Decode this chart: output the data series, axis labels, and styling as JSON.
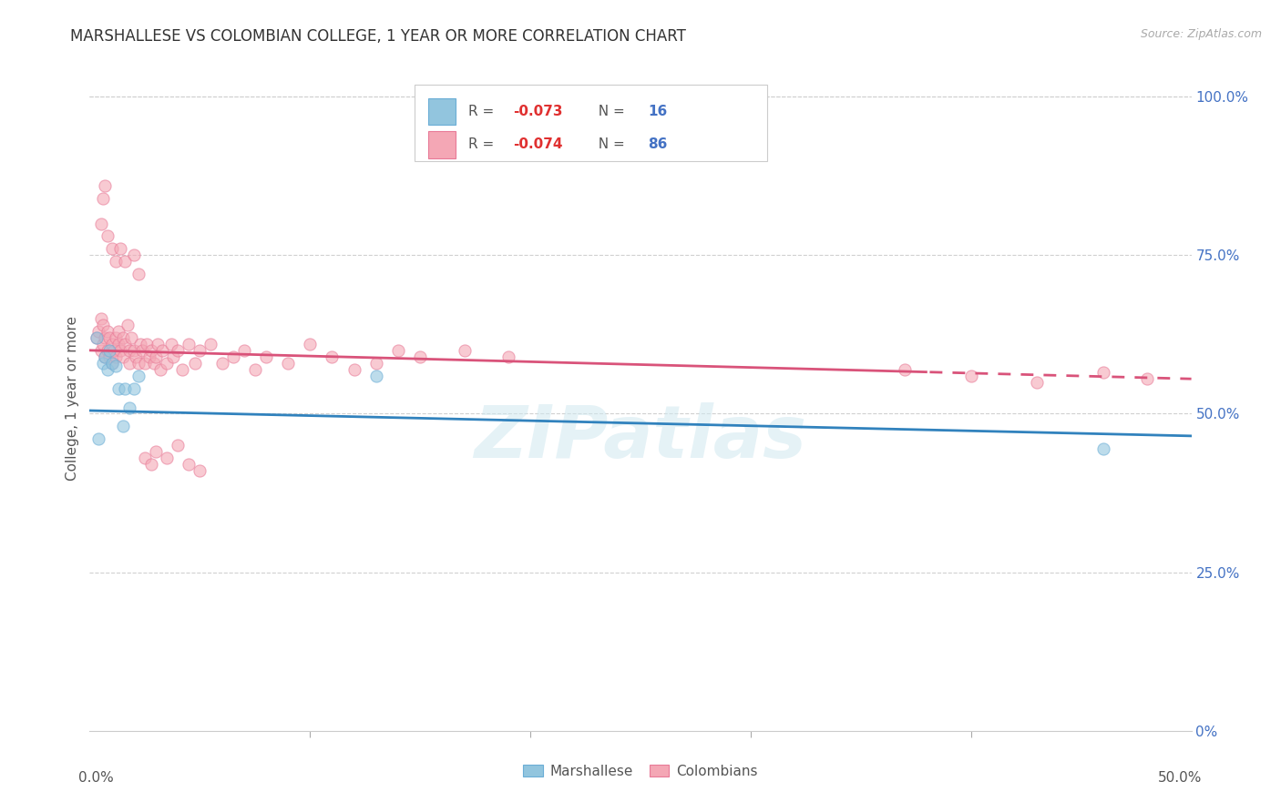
{
  "title": "MARSHALLESE VS COLOMBIAN COLLEGE, 1 YEAR OR MORE CORRELATION CHART",
  "source": "Source: ZipAtlas.com",
  "ylabel": "College, 1 year or more",
  "ylabel_right_ticks": [
    "100.0%",
    "75.0%",
    "50.0%",
    "25.0%",
    "0%"
  ],
  "ylabel_right_vals": [
    1.0,
    0.75,
    0.5,
    0.25,
    0.0
  ],
  "xlim": [
    0.0,
    0.5
  ],
  "ylim": [
    0.0,
    1.05
  ],
  "grid_vals": [
    0.25,
    0.5,
    0.75,
    1.0
  ],
  "marshallese_color": "#92c5de",
  "colombian_color": "#f4a7b5",
  "marshallese_edge_color": "#6baed6",
  "colombian_edge_color": "#e87a97",
  "marshallese_line_color": "#3182bd",
  "colombian_line_color": "#d9537a",
  "marker_size": 90,
  "marker_alpha": 0.6,
  "watermark": "ZIPatlas",
  "marshallese_x": [
    0.003,
    0.006,
    0.007,
    0.008,
    0.009,
    0.01,
    0.012,
    0.013,
    0.015,
    0.016,
    0.018,
    0.02,
    0.022,
    0.13,
    0.46,
    0.004
  ],
  "marshallese_y": [
    0.62,
    0.58,
    0.59,
    0.57,
    0.6,
    0.58,
    0.575,
    0.54,
    0.48,
    0.54,
    0.51,
    0.54,
    0.56,
    0.56,
    0.445,
    0.46
  ],
  "colombian_x": [
    0.003,
    0.004,
    0.005,
    0.005,
    0.006,
    0.006,
    0.007,
    0.007,
    0.008,
    0.008,
    0.009,
    0.009,
    0.01,
    0.01,
    0.011,
    0.012,
    0.012,
    0.013,
    0.013,
    0.014,
    0.015,
    0.015,
    0.016,
    0.017,
    0.018,
    0.018,
    0.019,
    0.02,
    0.021,
    0.022,
    0.023,
    0.024,
    0.025,
    0.026,
    0.027,
    0.028,
    0.029,
    0.03,
    0.031,
    0.032,
    0.033,
    0.035,
    0.037,
    0.038,
    0.04,
    0.042,
    0.045,
    0.048,
    0.05,
    0.055,
    0.06,
    0.065,
    0.07,
    0.075,
    0.08,
    0.09,
    0.1,
    0.11,
    0.12,
    0.13,
    0.14,
    0.15,
    0.17,
    0.19,
    0.005,
    0.006,
    0.007,
    0.008,
    0.01,
    0.012,
    0.014,
    0.016,
    0.02,
    0.022,
    0.025,
    0.028,
    0.03,
    0.035,
    0.04,
    0.045,
    0.05,
    0.37,
    0.4,
    0.43,
    0.46,
    0.48
  ],
  "colombian_y": [
    0.62,
    0.63,
    0.65,
    0.6,
    0.64,
    0.61,
    0.62,
    0.59,
    0.6,
    0.63,
    0.62,
    0.59,
    0.61,
    0.58,
    0.6,
    0.62,
    0.59,
    0.61,
    0.63,
    0.6,
    0.62,
    0.59,
    0.61,
    0.64,
    0.6,
    0.58,
    0.62,
    0.6,
    0.59,
    0.58,
    0.61,
    0.6,
    0.58,
    0.61,
    0.59,
    0.6,
    0.58,
    0.59,
    0.61,
    0.57,
    0.6,
    0.58,
    0.61,
    0.59,
    0.6,
    0.57,
    0.61,
    0.58,
    0.6,
    0.61,
    0.58,
    0.59,
    0.6,
    0.57,
    0.59,
    0.58,
    0.61,
    0.59,
    0.57,
    0.58,
    0.6,
    0.59,
    0.6,
    0.59,
    0.8,
    0.84,
    0.86,
    0.78,
    0.76,
    0.74,
    0.76,
    0.74,
    0.75,
    0.72,
    0.43,
    0.42,
    0.44,
    0.43,
    0.45,
    0.42,
    0.41,
    0.57,
    0.56,
    0.55,
    0.565,
    0.555
  ]
}
